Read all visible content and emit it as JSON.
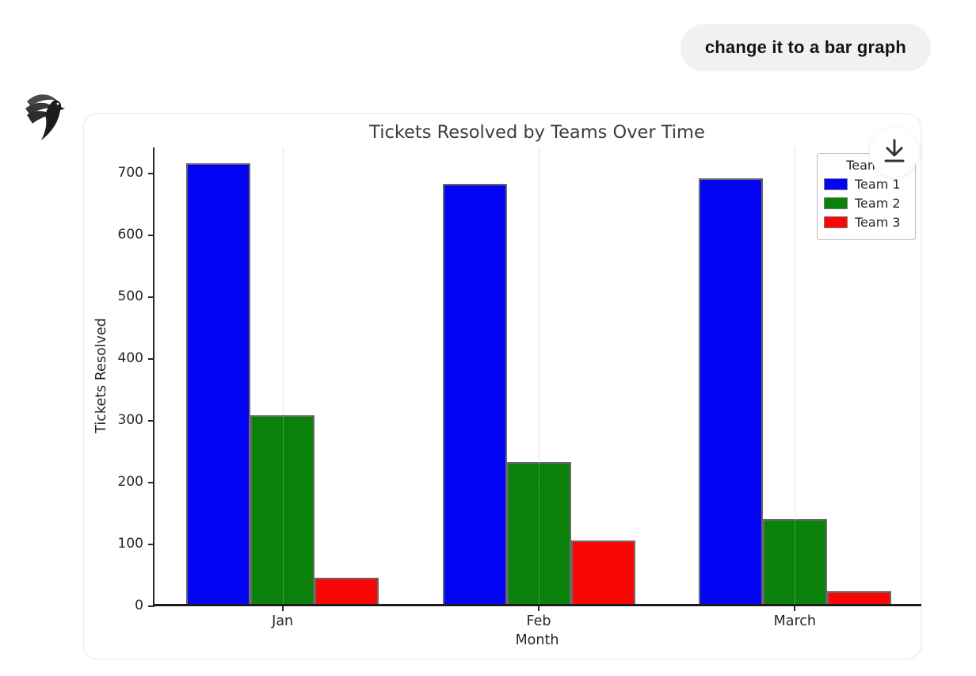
{
  "conversation": {
    "user_message": "change it to a bar graph"
  },
  "assistant": {
    "avatar_icon": "bird-logo-icon"
  },
  "chart_card": {
    "download_icon": "download-icon",
    "card_background": "#ffffff"
  },
  "chart_data": {
    "type": "bar",
    "title": "Tickets Resolved by Teams Over Time",
    "xlabel": "Month",
    "ylabel": "Tickets Resolved",
    "categories": [
      "Jan",
      "Feb",
      "March"
    ],
    "series": [
      {
        "name": "Team 1",
        "color": "#0404f5",
        "values": [
          712,
          679,
          688
        ]
      },
      {
        "name": "Team 2",
        "color": "#0a8209",
        "values": [
          305,
          230,
          137
        ]
      },
      {
        "name": "Team 3",
        "color": "#fb0607",
        "values": [
          42,
          103,
          20
        ]
      }
    ],
    "legend_title": "Teams",
    "legend_position": "upper right",
    "ylim": [
      0,
      742
    ],
    "yticks": [
      0,
      100,
      200,
      300,
      400,
      500,
      600,
      700
    ],
    "grid": "vertical dotted lines at x ticks",
    "bar_edge_color": "#696969",
    "axis_color": "#262626"
  }
}
